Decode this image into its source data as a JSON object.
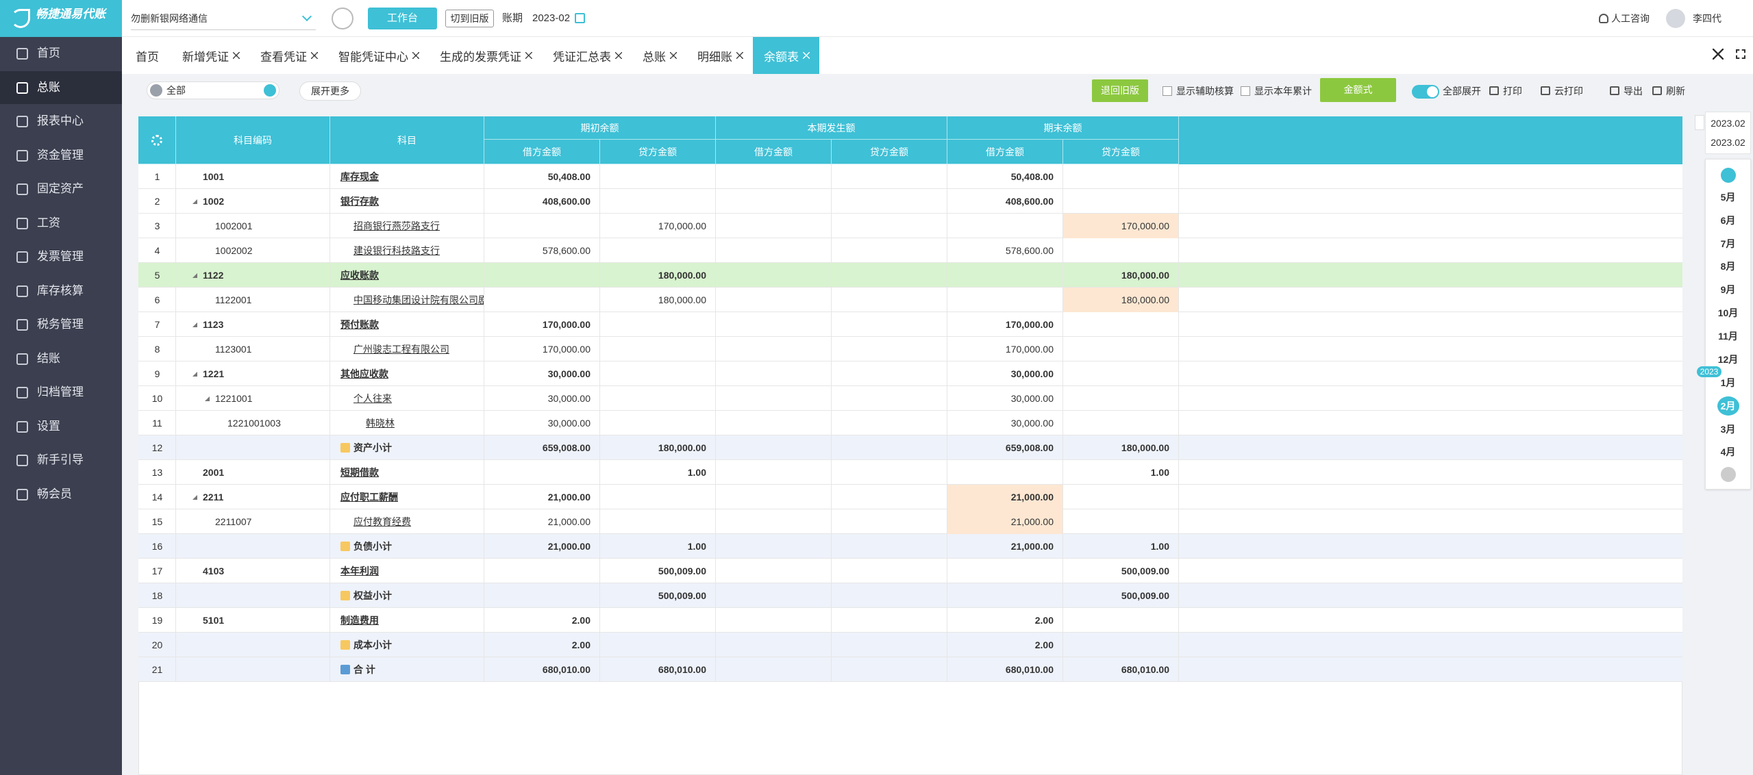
{
  "sidebar": {
    "logo": "畅捷通易代账",
    "menu": [
      "首页",
      "总账",
      "报表中心",
      "资金管理",
      "固定资产",
      "工资",
      "发票管理",
      "库存核算",
      "税务管理",
      "结账",
      "归档管理",
      "设置",
      "新手引导",
      "畅会员"
    ],
    "active": 1
  },
  "topbar": {
    "company": "勿删新银网络通信",
    "workbench": "工作台",
    "old_version": "切到旧版",
    "period_label": "账期",
    "period": "2023-02",
    "consult": "人工咨询",
    "user": "李四代"
  },
  "tabs": {
    "items": [
      "首页",
      "新增凭证",
      "查看凭证",
      "智能凭证中心",
      "生成的发票凭证",
      "凭证汇总表",
      "总账",
      "明细账",
      "余额表"
    ],
    "active": 8
  },
  "toolbar": {
    "filter": "全部",
    "expand_more": "展开更多",
    "back_old": "退回旧版",
    "show_aux": "显示辅助核算",
    "show_ytd": "显示本年累计",
    "amount_style": "金额式",
    "expand_all": "全部展开",
    "print": "打印",
    "cloud_print": "云打印",
    "export": "导出",
    "refresh": "刷新"
  },
  "table": {
    "headers": {
      "code": "科目编码",
      "name": "科目",
      "groups": [
        "期初余额",
        "本期发生额",
        "期末余额"
      ],
      "debit": "借方金额",
      "credit": "贷方金额"
    },
    "rows": [
      {
        "no": "1",
        "code": "1001",
        "name": "库存现金",
        "level": 1,
        "amounts": [
          "50,408.00",
          null,
          null,
          null,
          "50,408.00",
          null
        ]
      },
      {
        "no": "2",
        "code": "1002",
        "name": "银行存款",
        "level": 1,
        "expand": true,
        "amounts": [
          "408,600.00",
          null,
          null,
          null,
          "408,600.00",
          null
        ]
      },
      {
        "no": "3",
        "code": "1002001",
        "name": "招商银行燕莎路支行",
        "level": 2,
        "highlight": [
          5
        ],
        "amounts": [
          null,
          "170,000.00",
          null,
          null,
          null,
          "170,000.00"
        ]
      },
      {
        "no": "4",
        "code": "1002002",
        "name": "建设银行科技路支行",
        "level": 2,
        "amounts": [
          "578,600.00",
          null,
          null,
          null,
          "578,600.00",
          null
        ]
      },
      {
        "no": "5",
        "code": "1122",
        "name": "应收账款",
        "level": 1,
        "expand": true,
        "kind": "green",
        "amounts": [
          null,
          "180,000.00",
          null,
          null,
          null,
          "180,000.00"
        ]
      },
      {
        "no": "6",
        "code": "1122001",
        "name": "中国移动集团设计院有限公司剧",
        "level": 2,
        "highlight": [
          5
        ],
        "amounts": [
          null,
          "180,000.00",
          null,
          null,
          null,
          "180,000.00"
        ]
      },
      {
        "no": "7",
        "code": "1123",
        "name": "预付账款",
        "level": 1,
        "expand": true,
        "amounts": [
          "170,000.00",
          null,
          null,
          null,
          "170,000.00",
          null
        ]
      },
      {
        "no": "8",
        "code": "1123001",
        "name": "广州骏志工程有限公司",
        "level": 2,
        "amounts": [
          "170,000.00",
          null,
          null,
          null,
          "170,000.00",
          null
        ]
      },
      {
        "no": "9",
        "code": "1221",
        "name": "其他应收款",
        "level": 1,
        "expand": true,
        "amounts": [
          "30,000.00",
          null,
          null,
          null,
          "30,000.00",
          null
        ]
      },
      {
        "no": "10",
        "code": "1221001",
        "name": "个人往来",
        "level": 2,
        "expand": true,
        "amounts": [
          "30,000.00",
          null,
          null,
          null,
          "30,000.00",
          null
        ]
      },
      {
        "no": "11",
        "code": "1221001003",
        "name": "韩晓林",
        "level": 3,
        "amounts": [
          "30,000.00",
          null,
          null,
          null,
          "30,000.00",
          null
        ]
      },
      {
        "no": "12",
        "code": null,
        "name": "资产小计",
        "kind": "subtotal",
        "amounts": [
          "659,008.00",
          "180,000.00",
          null,
          null,
          "659,008.00",
          "180,000.00"
        ]
      },
      {
        "no": "13",
        "code": "2001",
        "name": "短期借款",
        "level": 1,
        "amounts": [
          null,
          "1.00",
          null,
          null,
          null,
          "1.00"
        ]
      },
      {
        "no": "14",
        "code": "2211",
        "name": "应付职工薪酬",
        "level": 1,
        "expand": true,
        "highlight": [
          4
        ],
        "amounts": [
          "21,000.00",
          null,
          null,
          null,
          "21,000.00",
          null
        ]
      },
      {
        "no": "15",
        "code": "2211007",
        "name": "应付教育经费",
        "level": 2,
        "highlight": [
          4
        ],
        "amounts": [
          "21,000.00",
          null,
          null,
          null,
          "21,000.00",
          null
        ]
      },
      {
        "no": "16",
        "code": null,
        "name": "负债小计",
        "kind": "subtotal",
        "amounts": [
          "21,000.00",
          "1.00",
          null,
          null,
          "21,000.00",
          "1.00"
        ]
      },
      {
        "no": "17",
        "code": "4103",
        "name": "本年利润",
        "level": 1,
        "amounts": [
          null,
          "500,009.00",
          null,
          null,
          null,
          "500,009.00"
        ]
      },
      {
        "no": "18",
        "code": null,
        "name": "权益小计",
        "kind": "subtotal",
        "amounts": [
          null,
          "500,009.00",
          null,
          null,
          null,
          "500,009.00"
        ]
      },
      {
        "no": "19",
        "code": "5101",
        "name": "制造费用",
        "level": 1,
        "amounts": [
          "2.00",
          null,
          null,
          null,
          "2.00",
          null
        ]
      },
      {
        "no": "20",
        "code": null,
        "name": "成本小计",
        "kind": "subtotal",
        "amounts": [
          "2.00",
          null,
          null,
          null,
          "2.00",
          null
        ]
      },
      {
        "no": "21",
        "code": null,
        "name": "合 计",
        "kind": "total",
        "amounts": [
          "680,010.00",
          "680,010.00",
          null,
          null,
          "680,010.00",
          "680,010.00"
        ]
      }
    ]
  },
  "period_panel": {
    "from": "2023.02",
    "to": "2023.02",
    "months_prev": [
      "5月",
      "6月",
      "7月",
      "8月",
      "9月",
      "10月",
      "11月",
      "12月"
    ],
    "year": "2023",
    "months": [
      "1月",
      "2月",
      "3月",
      "4月"
    ],
    "active": 1
  }
}
